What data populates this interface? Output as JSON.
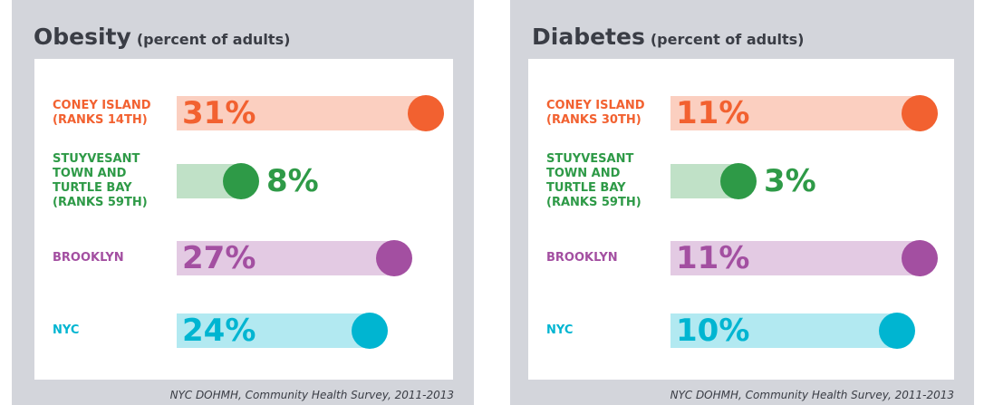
{
  "chart_data": [
    {
      "type": "bar",
      "title": "Obesity",
      "subtitle": "(percent of adults)",
      "categories": [
        "CONEY ISLAND (RANKS 14TH)",
        "STUYVESANT TOWN AND TURTLE BAY (RANKS 59TH)",
        "BROOKLYN",
        "NYC"
      ],
      "values": [
        31,
        8,
        27,
        24
      ],
      "value_labels": [
        "31%",
        "8%",
        "27%",
        "24%"
      ],
      "colors": [
        "#f26130",
        "#2e9a47",
        "#a34fa1",
        "#00b5d1"
      ],
      "source": "NYC DOHMH, Community Health Survey, 2011-2013"
    },
    {
      "type": "bar",
      "title": "Diabetes",
      "subtitle": "(percent of adults)",
      "categories": [
        "CONEY ISLAND (RANKS 30TH)",
        "STUYVESANT TOWN AND TURTLE BAY (RANKS 59TH)",
        "BROOKLYN",
        "NYC"
      ],
      "values": [
        11,
        3,
        11,
        10
      ],
      "value_labels": [
        "11%",
        "3%",
        "11%",
        "10%"
      ],
      "colors": [
        "#f26130",
        "#2e9a47",
        "#a34fa1",
        "#00b5d1"
      ],
      "source": "NYC DOHMH, Community Health Survey, 2011-2013"
    }
  ]
}
